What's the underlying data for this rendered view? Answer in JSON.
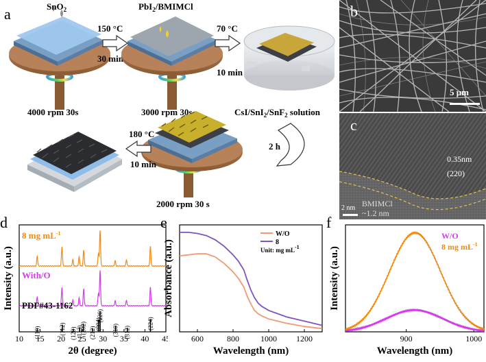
{
  "figure": {
    "panel_labels": [
      "a",
      "b",
      "c",
      "d",
      "e",
      "f"
    ],
    "schematic": {
      "sno2": "SnO",
      "sno2_sub": "2",
      "pbi2": "PbI",
      "pbi2_sub": "2",
      "pbi2_rest": "/BMIMCl",
      "step1_temp": "150 °C",
      "step1_time": "30 min",
      "step2_temp": "70 °C",
      "step2_time": "10 min",
      "spin1": "4000 rpm 30s",
      "spin2": "3000 rpm 30s",
      "solution_a": "CsI/SnI",
      "solution_sub1": "2",
      "solution_b": "/SnF",
      "solution_sub2": "2",
      "solution_c": " solution",
      "dip_time": "2 h",
      "step3_temp": "180 °C",
      "step3_time": "10 min",
      "spin3": "2000 rpm 30 s"
    },
    "sem": {
      "scale": "5 μm",
      "scale_bar_fraction": 0.16
    },
    "tem": {
      "d_spacing": "0.35nm",
      "plane": "(220)",
      "scale": "2 nm",
      "layer_label": "BMIMCl",
      "layer_thickness": "~1.2 nm"
    },
    "colors": {
      "orange": "#F28A12",
      "magenta": "#D13CE8",
      "salmon": "#F09A74",
      "purple": "#7B54BE",
      "wood": "#A9744A",
      "blue_layer": "#86B8E8"
    }
  },
  "chart_data": [
    {
      "panel": "d",
      "type": "line",
      "xlabel": "2θ (degree)",
      "ylabel": "Intensity (a.u.)",
      "xlim": [
        10,
        45
      ],
      "xticks": [
        10,
        15,
        20,
        25,
        30,
        35,
        40,
        45
      ],
      "series": [
        {
          "name": "8 mg mL",
          "name_sup": "-1",
          "color": "#F28A12",
          "peaks": [
            [
              14.3,
              0.28
            ],
            [
              20.2,
              0.55
            ],
            [
              22.8,
              0.18
            ],
            [
              24.3,
              0.25
            ],
            [
              25.4,
              0.45
            ],
            [
              28.9,
              0.35
            ],
            [
              29.3,
              1.0
            ],
            [
              32.9,
              0.15
            ],
            [
              35.6,
              0.18
            ],
            [
              41.3,
              0.55
            ]
          ]
        },
        {
          "name": "With/O",
          "color": "#D13CE8",
          "peaks": [
            [
              14.3,
              0.25
            ],
            [
              20.2,
              0.52
            ],
            [
              22.8,
              0.16
            ],
            [
              24.3,
              0.22
            ],
            [
              25.4,
              0.48
            ],
            [
              28.9,
              0.35
            ],
            [
              29.3,
              1.0
            ],
            [
              32.9,
              0.14
            ],
            [
              35.6,
              0.16
            ],
            [
              41.3,
              0.52
            ]
          ]
        }
      ],
      "reference": {
        "name": "PDF#43-1162",
        "sticks": [
          {
            "x": 14.3,
            "label": "(110)",
            "h": 0.18
          },
          {
            "x": 20.3,
            "label": "(112)",
            "h": 0.35
          },
          {
            "x": 22.9,
            "label": "(120)",
            "h": 0.15
          },
          {
            "x": 24.4,
            "label": "(113)",
            "h": 0.22
          },
          {
            "x": 25.3,
            "label": "(202)",
            "h": 0.4
          },
          {
            "x": 27.5,
            "label": "(212)",
            "h": 0.18
          },
          {
            "x": 28.9,
            "label": "(004)",
            "h": 0.6
          },
          {
            "x": 29.3,
            "label": "(220)",
            "h": 1.0
          },
          {
            "x": 33.0,
            "label": "(310)",
            "h": 0.3
          },
          {
            "x": 35.8,
            "label": "(312)",
            "h": 0.2
          },
          {
            "x": 41.3,
            "label": "(224)",
            "h": 0.62
          }
        ]
      }
    },
    {
      "panel": "e",
      "type": "line",
      "xlabel": "Wavelength (nm)",
      "ylabel": "Absorbance (a.u.)",
      "xlim": [
        500,
        1300
      ],
      "ylim": [
        0,
        1
      ],
      "xticks": [
        600,
        800,
        1000,
        1200
      ],
      "legend_note": "Unit: mg mL",
      "legend_note_sup": "-1",
      "series": [
        {
          "name": "W/O",
          "color": "#F09A74",
          "x": [
            500,
            550,
            600,
            650,
            700,
            750,
            800,
            830,
            860,
            880,
            900,
            920,
            940,
            960,
            1000,
            1050,
            1100,
            1200,
            1300
          ],
          "y": [
            0.71,
            0.72,
            0.73,
            0.73,
            0.7,
            0.64,
            0.56,
            0.5,
            0.42,
            0.33,
            0.26,
            0.2,
            0.17,
            0.15,
            0.12,
            0.1,
            0.08,
            0.05,
            0.03
          ]
        },
        {
          "name": "8",
          "color": "#7B54BE",
          "x": [
            500,
            550,
            600,
            650,
            700,
            750,
            800,
            830,
            860,
            880,
            900,
            920,
            940,
            960,
            1000,
            1050,
            1100,
            1200,
            1300
          ],
          "y": [
            0.93,
            0.93,
            0.92,
            0.9,
            0.86,
            0.8,
            0.72,
            0.66,
            0.58,
            0.48,
            0.39,
            0.32,
            0.27,
            0.24,
            0.2,
            0.17,
            0.14,
            0.1,
            0.06
          ]
        }
      ]
    },
    {
      "panel": "f",
      "type": "line",
      "xlabel": "Wavelength (nm)",
      "ylabel": "Intensity (a.u.)",
      "xlim": [
        810,
        1015
      ],
      "ylim": [
        0,
        1.08
      ],
      "xticks": [
        900,
        1000
      ],
      "series": [
        {
          "name": "W/O",
          "color": "#D13CE8",
          "peak": 912,
          "height": 0.22,
          "width": 42
        },
        {
          "name": "8 mg mL",
          "name_sup": "-1",
          "color": "#F28A12",
          "peak": 913,
          "height": 1.0,
          "width": 38
        }
      ]
    }
  ]
}
